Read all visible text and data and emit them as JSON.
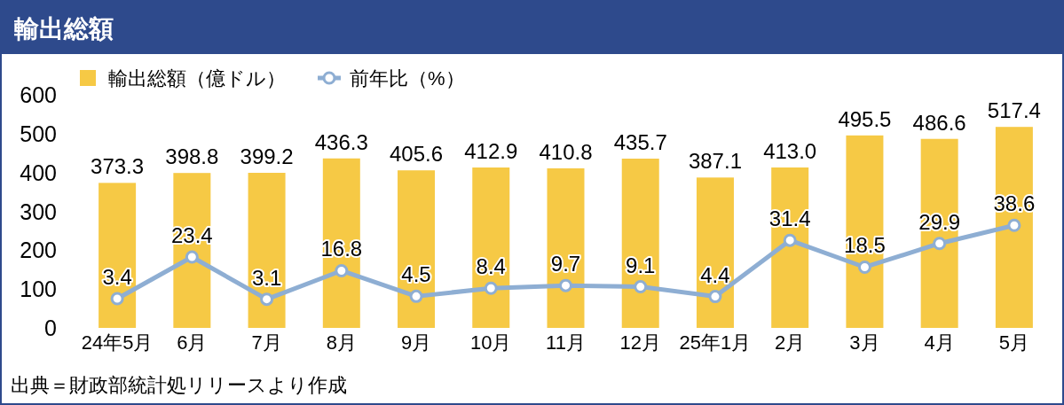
{
  "chart_data": {
    "type": "bar",
    "title": "輸出総額",
    "categories": [
      "24年5月",
      "6月",
      "7月",
      "8月",
      "9月",
      "10月",
      "11月",
      "12月",
      "25年1月",
      "2月",
      "3月",
      "4月",
      "5月"
    ],
    "series": [
      {
        "name": "輸出総額（億ドル）",
        "color": "#f6c945",
        "values": [
          373.3,
          398.8,
          399.2,
          436.3,
          405.6,
          412.9,
          410.8,
          435.7,
          387.1,
          413.0,
          495.5,
          486.6,
          517.4
        ],
        "value_labels": [
          "373.3",
          "398.8",
          "399.2",
          "436.3",
          "405.6",
          "412.9",
          "410.8",
          "435.7",
          "387.1",
          "413.0",
          "495.5",
          "486.6",
          "517.4"
        ]
      },
      {
        "name": "前年比（%）",
        "type": "line",
        "axis": "y2",
        "marker": "circle",
        "color": "#8eaed3",
        "values": [
          3.4,
          23.4,
          3.1,
          16.8,
          4.5,
          8.4,
          9.7,
          9.1,
          4.4,
          31.4,
          18.5,
          29.9,
          38.6
        ]
      }
    ],
    "ylim": [
      0,
      600
    ],
    "yticks": [
      0,
      100,
      200,
      300,
      400,
      500,
      600
    ],
    "data_labels": true,
    "legend": "top",
    "grid": false,
    "annotations": [
      "出典＝財政部統計処リリースより作成"
    ]
  }
}
